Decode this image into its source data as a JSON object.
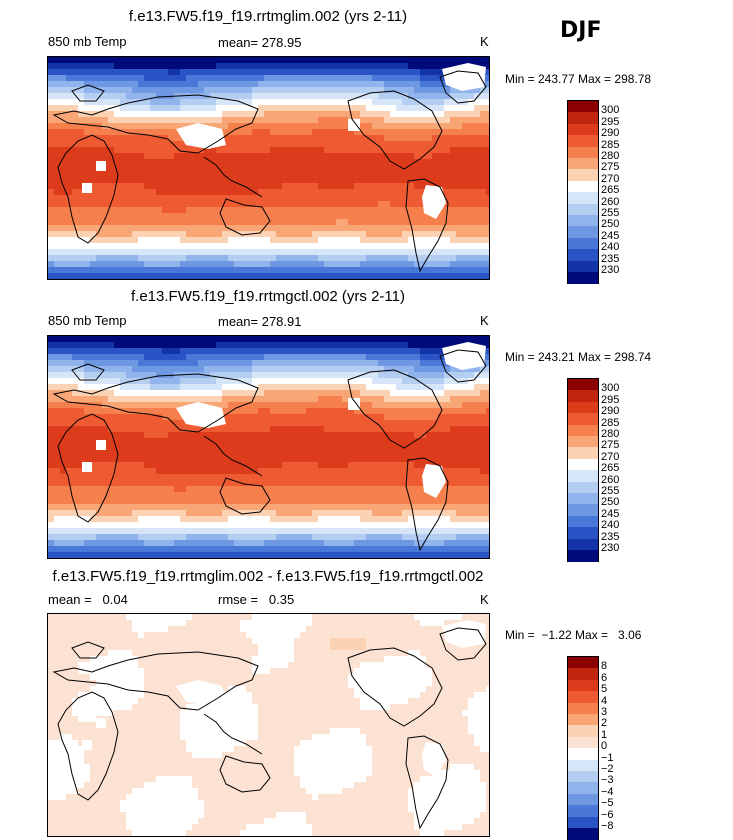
{
  "season_label": "DJF",
  "panels": [
    {
      "title": "f.e13.FW5.f19_f19.rrtmglim.002 (yrs 2-11)",
      "variable": "850 mb Temp",
      "stat_text": "mean= 278.95",
      "units": "K",
      "minmax_text": "Min = 243.77 Max = 298.78",
      "colorbar_labels": [
        "300",
        "295",
        "290",
        "285",
        "280",
        "275",
        "270",
        "265",
        "260",
        "255",
        "250",
        "245",
        "240",
        "235",
        "230"
      ]
    },
    {
      "title": "f.e13.FW5.f19_f19.rrtmgctl.002 (yrs 2-11)",
      "variable": "850 mb Temp",
      "stat_text": "mean= 278.91",
      "units": "K",
      "minmax_text": "Min = 243.21 Max = 298.74",
      "colorbar_labels": [
        "300",
        "295",
        "290",
        "285",
        "280",
        "275",
        "270",
        "265",
        "260",
        "255",
        "250",
        "245",
        "240",
        "235",
        "230"
      ]
    },
    {
      "title": "f.e13.FW5.f19_f19.rrtmglim.002 - f.e13.FW5.f19_f19.rrtmgctl.002",
      "stat_left": "mean =   0.04",
      "stat_right": "rmse =   0.35",
      "units": "K",
      "minmax_text": "Min =  −1.22 Max =   3.06",
      "colorbar_labels": [
        "8",
        "6",
        "5",
        "4",
        "3",
        "2",
        "1",
        "0",
        "−1",
        "−2",
        "−3",
        "−4",
        "−5",
        "−6",
        "−8"
      ]
    }
  ],
  "chart_data": [
    {
      "type": "heatmap",
      "title": "f.e13.FW5.f19_f19.rrtmglim.002 (yrs 2-11)",
      "variable": "850 mb Temp",
      "units": "K",
      "mean": 278.95,
      "min": 243.77,
      "max": 298.78,
      "contour_levels": [
        300,
        295,
        290,
        285,
        280,
        275,
        270,
        265,
        260,
        255,
        250,
        245,
        240,
        235,
        230
      ],
      "colors": [
        "#8b0000",
        "#c0260e",
        "#dc3c1c",
        "#ee5a32",
        "#f5804e",
        "#f8a676",
        "#fcd2b4",
        "#ffffff",
        "#d6e6f8",
        "#b4cef2",
        "#92b4ec",
        "#6e98e2",
        "#4a78d8",
        "#2a54c6",
        "#1234a6",
        "#000a7a"
      ]
    },
    {
      "type": "heatmap",
      "title": "f.e13.FW5.f19_f19.rrtmgctl.002 (yrs 2-11)",
      "variable": "850 mb Temp",
      "units": "K",
      "mean": 278.91,
      "min": 243.21,
      "max": 298.74,
      "contour_levels": [
        300,
        295,
        290,
        285,
        280,
        275,
        270,
        265,
        260,
        255,
        250,
        245,
        240,
        235,
        230
      ],
      "colors": [
        "#8b0000",
        "#c0260e",
        "#dc3c1c",
        "#ee5a32",
        "#f5804e",
        "#f8a676",
        "#fcd2b4",
        "#ffffff",
        "#d6e6f8",
        "#b4cef2",
        "#92b4ec",
        "#6e98e2",
        "#4a78d8",
        "#2a54c6",
        "#1234a6",
        "#000a7a"
      ]
    },
    {
      "type": "heatmap",
      "title": "f.e13.FW5.f19_f19.rrtmglim.002 - f.e13.FW5.f19_f19.rrtmgctl.002",
      "units": "K",
      "mean": 0.04,
      "rmse": 0.35,
      "min": -1.22,
      "max": 3.06,
      "contour_levels": [
        8,
        6,
        5,
        4,
        3,
        2,
        1,
        0,
        -1,
        -2,
        -3,
        -4,
        -5,
        -6,
        -8
      ],
      "colors": [
        "#8b0000",
        "#c0260e",
        "#dc3c1c",
        "#ee5a32",
        "#f5804e",
        "#f8a676",
        "#fcd2b4",
        "#fbe2d2",
        "#ffffff",
        "#d6e6f8",
        "#b4cef2",
        "#92b4ec",
        "#6e98e2",
        "#4a78d8",
        "#2a54c6",
        "#000a7a"
      ]
    }
  ]
}
